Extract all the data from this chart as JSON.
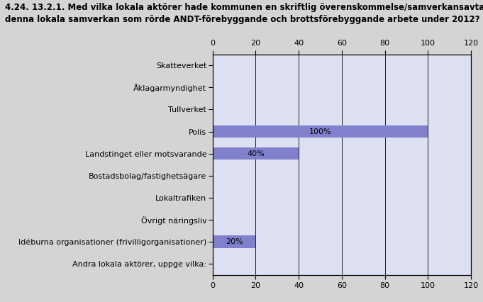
{
  "title_line1": "4.24. 13.2.1. Med vilka lokala aktörer hade kommunen en skriftlig överenskommelse/samverkansavtal för",
  "title_line2": "denna lokala samverkan som rörde ANDT-förebyggande och brottsförebyggande arbete under 2012?",
  "categories": [
    "Skatteverket",
    "Åklagarmyndighet",
    "Tullverket",
    "Polis",
    "Landstinget eller motsvarande",
    "Bostadsbolag/fastighetsägare",
    "Lokaltrafiken",
    "Övrigt näringsliv",
    "Idéburna organisationer (frivilligorganisationer)",
    "Andra lokala aktörer, uppge vilka:"
  ],
  "values": [
    0,
    0,
    0,
    100,
    40,
    0,
    0,
    0,
    20,
    0
  ],
  "labels": [
    "",
    "",
    "",
    "100%",
    "40%",
    "",
    "",
    "",
    "20%",
    ""
  ],
  "bar_color": "#8080cc",
  "bg_color": "#d4d4d4",
  "plot_bg_color": "#dce0f0",
  "xlim": [
    0,
    120
  ],
  "xticks": [
    0,
    20,
    40,
    60,
    80,
    100,
    120
  ],
  "title_fontsize": 8.5,
  "label_fontsize": 8.0,
  "tick_fontsize": 8.0,
  "bar_height": 0.55
}
